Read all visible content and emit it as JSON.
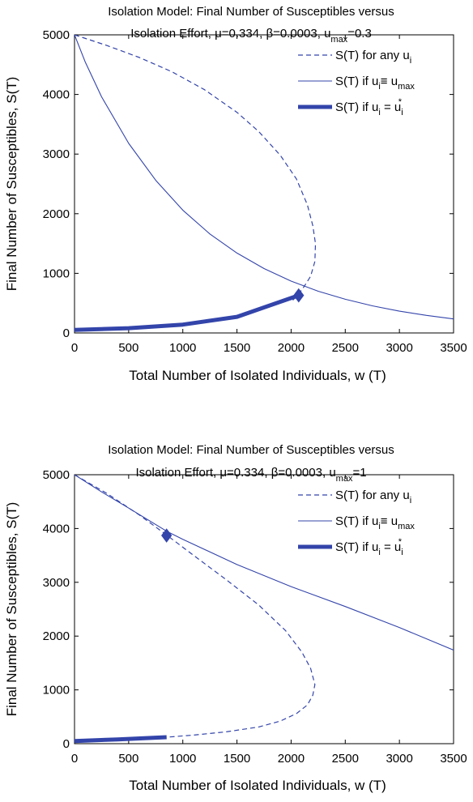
{
  "chart_data": [
    {
      "type": "line",
      "title_line1": "Isolation Model: Final Number of Susceptibles versus",
      "title_line2_prefix": "Isolation Effort, ",
      "title_mu": "μ=0.334",
      "title_beta": "β=0.0003",
      "title_umax_u": "u",
      "title_umax_sub": "max",
      "title_umax_val": "=0.3",
      "xlabel": "Total Number of Isolated Individuals, w (T)",
      "ylabel": "Final Number of Susceptibles, S(T)",
      "xlim": [
        0,
        3500
      ],
      "ylim": [
        0,
        5000
      ],
      "xticks": [
        0,
        500,
        1000,
        1500,
        2000,
        2500,
        3000,
        3500
      ],
      "yticks": [
        0,
        1000,
        2000,
        3000,
        4000,
        5000
      ],
      "grid": false,
      "legend_position": "top-right",
      "legend": [
        {
          "base": "S(T) for any u",
          "sub": "i",
          "style": "dashed"
        },
        {
          "base": "S(T) if u",
          "sub": "i",
          "mid": "≡ u",
          "sub2": "max",
          "style": "thin"
        },
        {
          "base": "S(T) if u",
          "sub": "i",
          "mid": " = u",
          "sub2": "i",
          "sup": "*",
          "style": "thick"
        }
      ],
      "series": [
        {
          "style": "dashed",
          "x": [
            0,
            300,
            600,
            900,
            1200,
            1500,
            1700,
            1900,
            2050,
            2150,
            2200,
            2225,
            2220,
            2180,
            2120,
            2070,
            2000
          ],
          "y": [
            5000,
            4820,
            4620,
            4380,
            4080,
            3700,
            3380,
            2980,
            2580,
            2150,
            1800,
            1500,
            1200,
            950,
            780,
            650,
            520
          ]
        },
        {
          "style": "thin",
          "x": [
            0,
            100,
            250,
            500,
            750,
            1000,
            1250,
            1500,
            1750,
            2000,
            2250,
            2500,
            2750,
            3000,
            3250,
            3500
          ],
          "y": [
            5000,
            4540,
            3960,
            3180,
            2560,
            2060,
            1660,
            1340,
            1080,
            870,
            700,
            565,
            455,
            365,
            295,
            235
          ]
        },
        {
          "style": "thick",
          "x": [
            0,
            500,
            1000,
            1500,
            2070
          ],
          "y": [
            50,
            80,
            140,
            270,
            630
          ]
        }
      ],
      "marker": {
        "shape": "diamond",
        "x": 2070,
        "y": 630
      }
    },
    {
      "type": "line",
      "title_line1": "Isolation Model: Final Number of Susceptibles versus",
      "title_line2_prefix": "Isolation Effort, ",
      "title_mu": "μ=0.334",
      "title_beta": "β=0.0003",
      "title_umax_u": "u",
      "title_umax_sub": "max",
      "title_umax_val": "=1",
      "xlabel": "Total Number of Isolated Individuals, w (T)",
      "ylabel": "Final Number of Susceptibles, S(T)",
      "xlim": [
        0,
        3500
      ],
      "ylim": [
        0,
        5000
      ],
      "xticks": [
        0,
        500,
        1000,
        1500,
        2000,
        2500,
        3000,
        3500
      ],
      "yticks": [
        0,
        1000,
        2000,
        3000,
        4000,
        5000
      ],
      "grid": false,
      "legend_position": "top-right",
      "legend": [
        {
          "base": "S(T) for any u",
          "sub": "i",
          "style": "dashed"
        },
        {
          "base": "S(T) if u",
          "sub": "i",
          "mid": "≡ u",
          "sub2": "max",
          "style": "thin"
        },
        {
          "base": "S(T) if u",
          "sub": "i",
          "mid": " = u",
          "sub2": "i",
          "sup": "*",
          "style": "thick"
        }
      ],
      "series": [
        {
          "style": "dashed",
          "x": [
            0,
            300,
            600,
            850,
            1100,
            1400,
            1700,
            1950,
            2100,
            2180,
            2220,
            2200,
            2150,
            2050,
            1900,
            1700,
            1400,
            1100,
            850
          ],
          "y": [
            5000,
            4650,
            4250,
            3880,
            3500,
            3050,
            2580,
            2100,
            1700,
            1400,
            1100,
            900,
            720,
            560,
            420,
            310,
            220,
            160,
            120
          ]
        },
        {
          "style": "thin",
          "x": [
            0,
            250,
            500,
            850,
            1000,
            1500,
            2000,
            2500,
            3000,
            3500
          ],
          "y": [
            5000,
            4680,
            4380,
            3950,
            3800,
            3330,
            2920,
            2550,
            2160,
            1740
          ]
        },
        {
          "style": "thick",
          "x": [
            0,
            400,
            850
          ],
          "y": [
            50,
            80,
            120
          ]
        }
      ],
      "marker": {
        "shape": "diamond",
        "x": 850,
        "y": 3870
      }
    }
  ]
}
